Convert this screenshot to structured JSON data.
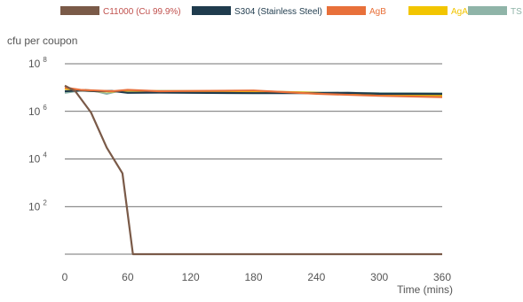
{
  "chart_data": {
    "type": "line",
    "title": "",
    "xlabel": "Time (mins)",
    "ylabel": "cfu per coupon",
    "x_ticks": [
      "0",
      "60",
      "120",
      "180",
      "240",
      "300",
      "360"
    ],
    "y_ticks": [
      {
        "base": "10",
        "exp": "2",
        "value": 100
      },
      {
        "base": "10",
        "exp": "4",
        "value": 10000
      },
      {
        "base": "10",
        "exp": "6",
        "value": 1000000
      },
      {
        "base": "10",
        "exp": "8",
        "value": 100000000
      }
    ],
    "ylim": [
      1,
      100000000
    ],
    "xlim": [
      0,
      360
    ],
    "y_scale": "log",
    "grid": "horizontal",
    "legend_placement": "top",
    "series": [
      {
        "name": "C11000 (Cu 99.9%)",
        "color": "#7a5a48",
        "label_color": "#c0504d",
        "x": [
          0,
          10,
          25,
          40,
          55,
          65,
          360
        ],
        "y": [
          12000000,
          7000000,
          900000,
          30000,
          2500,
          1,
          1
        ]
      },
      {
        "name": "S304 (Stainless Steel)",
        "color": "#1f3b4d",
        "label_color": "#1f3b4d",
        "x": [
          0,
          15,
          30,
          45,
          60,
          90,
          120,
          180,
          240,
          270,
          300,
          360
        ],
        "y": [
          7000000,
          7500000,
          7000000,
          7200000,
          6000000,
          6200000,
          6000000,
          5800000,
          5800000,
          6000000,
          5500000,
          5400000
        ]
      },
      {
        "name": "AgB",
        "color": "#e8703a",
        "label_color": "#e8703a",
        "x": [
          0,
          15,
          30,
          45,
          60,
          90,
          120,
          180,
          240,
          300,
          360
        ],
        "y": [
          10000000,
          8000000,
          7500000,
          7000000,
          8000000,
          7000000,
          7200000,
          7500000,
          5500000,
          4500000,
          4000000
        ]
      },
      {
        "name": "AgA",
        "color": "#f2c500",
        "label_color": "#f2c500",
        "x": [
          0,
          15,
          30,
          45,
          60,
          90,
          120,
          180,
          240,
          300,
          360
        ],
        "y": [
          9000000,
          7500000,
          7000000,
          6800000,
          7500000,
          7000000,
          7000000,
          7000000,
          6000000,
          5000000,
          4800000
        ]
      },
      {
        "name": "TS",
        "color": "#8fb4a8",
        "label_color": "#8fb4a8",
        "x": [
          0,
          10,
          20,
          30,
          40,
          50,
          60,
          75,
          90,
          120,
          180,
          240,
          300,
          360
        ],
        "y": [
          6000000,
          7000000,
          8000000,
          7000000,
          5500000,
          7000000,
          7000000,
          6500000,
          7200000,
          7000000,
          6800000,
          6200000,
          5800000,
          5700000
        ]
      }
    ]
  }
}
